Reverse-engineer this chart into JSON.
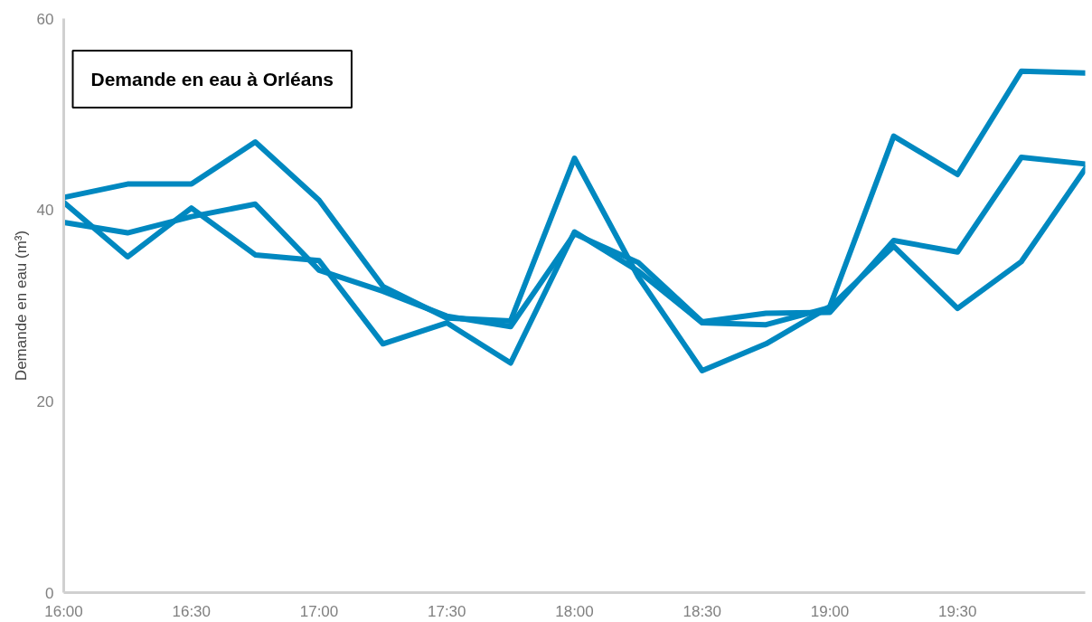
{
  "chart_data": {
    "type": "line",
    "title": "Demande en eau à Orléans",
    "ylabel": "Demande en eau (m³)",
    "x": [
      16,
      16.25,
      16.5,
      16.75,
      17,
      17.25,
      17.5,
      17.75,
      18,
      18.25,
      18.5,
      18.75,
      19,
      19.25,
      19.5,
      19.75,
      20
    ],
    "series": [
      {
        "color": "#0088c0",
        "values": [
          41.3,
          42.7,
          42.7,
          47.1,
          41,
          32,
          28.7,
          28.4,
          45.4,
          33,
          23.2,
          26,
          29.9,
          47.7,
          43.7,
          54.5,
          54.3
        ]
      },
      {
        "color": "#0088c0",
        "values": [
          38.7,
          37.6,
          39.3,
          40.6,
          33.7,
          31.5,
          28.9,
          27.8,
          37.5,
          34.5,
          28.3,
          29.2,
          29.3,
          36.8,
          35.6,
          45.5,
          44.8
        ]
      },
      {
        "color": "#0088c0",
        "values": [
          40.8,
          35.1,
          40.2,
          35.3,
          34.7,
          26,
          28.2,
          24,
          37.7,
          33.6,
          28.2,
          28,
          29.8,
          36.2,
          29.7,
          34.6,
          44.3
        ]
      }
    ],
    "xlim": [
      16,
      20
    ],
    "ylim": [
      0,
      60
    ],
    "xticks": [
      {
        "value": 16,
        "label": "16:00"
      },
      {
        "value": 16.5,
        "label": "16:30"
      },
      {
        "value": 17,
        "label": "17:00"
      },
      {
        "value": 17.5,
        "label": "17:30"
      },
      {
        "value": 18,
        "label": "18:00"
      },
      {
        "value": 18.5,
        "label": "18:30"
      },
      {
        "value": 19,
        "label": "19:00"
      },
      {
        "value": 19.5,
        "label": "19:30"
      }
    ],
    "yticks": [
      0,
      20,
      40,
      60
    ],
    "grid": false,
    "marker": "none",
    "line_style": "solid"
  }
}
